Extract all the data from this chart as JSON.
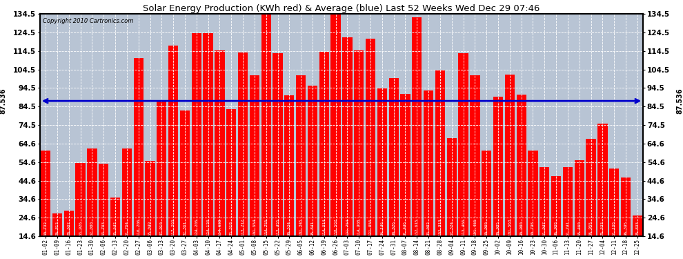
{
  "title": "Solar Energy Production (KWh red) & Average (blue) Last 52 Weeks Wed Dec 29 07:46",
  "copyright": "Copyright 2010 Cartronics.com",
  "average": 87.536,
  "ylim": [
    14.6,
    134.6
  ],
  "yticks": [
    14.6,
    24.6,
    34.6,
    44.6,
    54.6,
    64.6,
    74.5,
    84.5,
    94.5,
    104.5,
    114.5,
    124.5,
    134.5
  ],
  "bar_color": "#FF0000",
  "avg_color": "#0000CC",
  "bg_color": "#B8C4D4",
  "categories": [
    "01-02",
    "01-09",
    "01-16",
    "01-23",
    "01-30",
    "02-06",
    "02-13",
    "02-20",
    "02-27",
    "03-06",
    "03-13",
    "03-20",
    "03-27",
    "04-03",
    "04-10",
    "04-17",
    "04-24",
    "05-01",
    "05-08",
    "05-15",
    "05-22",
    "05-29",
    "06-05",
    "06-12",
    "06-19",
    "06-26",
    "07-03",
    "07-10",
    "07-17",
    "07-24",
    "07-31",
    "08-07",
    "08-14",
    "08-21",
    "08-28",
    "09-04",
    "09-11",
    "09-18",
    "09-25",
    "10-02",
    "10-09",
    "10-16",
    "10-23",
    "10-30",
    "11-06",
    "11-13",
    "11-20",
    "11-27",
    "12-04",
    "12-11",
    "12-18",
    "12-25"
  ],
  "values": [
    60.732,
    26.813,
    28.602,
    53.926,
    62.08,
    53.703,
    35.642,
    61.764,
    110.706,
    55.049,
    87.91,
    117.203,
    82.361,
    124.205,
    124.12,
    114.608,
    83.318,
    113.712,
    101.554,
    134.755,
    113.455,
    90.534,
    101.345,
    95.841,
    114.014,
    138.507,
    121.764,
    114.908,
    121.056,
    94.146,
    99.876,
    91.446,
    132.615,
    93.082,
    103.919,
    67.324,
    113.466,
    101.466,
    60.9,
    89.985,
    101.563,
    90.98,
    60.798,
    51.947,
    46.908,
    51.741,
    55.46,
    66.955,
    75.333,
    51.108,
    46.395,
    25.833
  ],
  "bar_labels": [
    "60.732",
    "26.813",
    "28.602",
    "53.926",
    "62.080",
    "53.703",
    "35.642",
    "61.764",
    "110.706",
    "55.049",
    "87.910",
    "117.203",
    "82.361",
    "124.205",
    "124.120",
    "114.608",
    "83.318",
    "113.712",
    "101.554",
    "134.755",
    "113.455",
    "90.534",
    "101.345",
    "95.841",
    "114.014",
    "138.507",
    "121.764",
    "114.908",
    "121.056",
    "94.146",
    "99.876",
    "91.446",
    "132.615",
    "93.082",
    "103.919",
    "67.324",
    "113.466",
    "101.466",
    "60.900",
    "89.985",
    "101.563",
    "90.980",
    "60.798",
    "51.947",
    "46.908",
    "51.741",
    "55.460",
    "66.955",
    "75.333",
    "51.108",
    "46.395",
    "25.833"
  ]
}
